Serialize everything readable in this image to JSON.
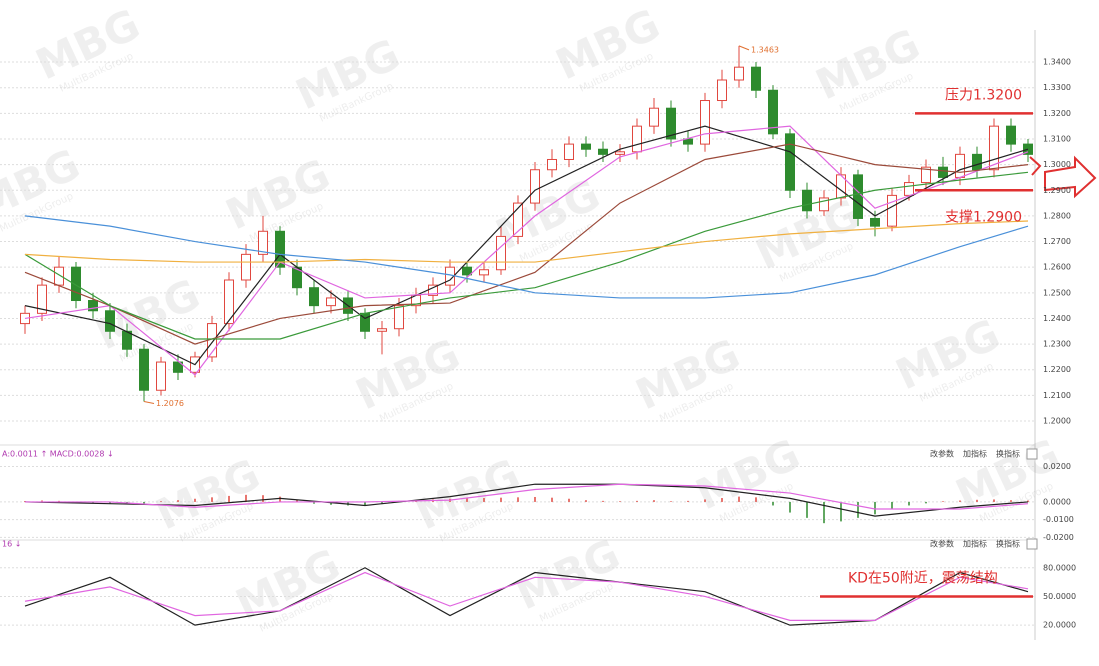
{
  "watermark": "MBG",
  "watermark_sub": "MultiBankGroup",
  "toolbar": [
    "改参数",
    "加指标",
    "换指标"
  ],
  "chart_data": [
    {
      "type": "candlestick",
      "open": [
        1.238,
        1.242,
        1.253,
        1.26,
        1.247,
        1.243,
        1.235,
        1.228,
        1.212,
        1.223,
        1.219,
        1.225,
        1.238,
        1.255,
        1.265,
        1.274,
        1.26,
        1.252,
        1.245,
        1.248,
        1.242,
        1.235,
        1.236,
        1.245,
        1.249,
        1.253,
        1.26,
        1.257,
        1.259,
        1.272,
        1.285,
        1.298,
        1.302,
        1.308,
        1.306,
        1.304,
        1.305,
        1.315,
        1.322,
        1.31,
        1.308,
        1.325,
        1.333,
        1.338,
        1.329,
        1.312,
        1.29,
        1.282,
        1.287,
        1.296,
        1.279,
        1.276,
        1.288,
        1.293,
        1.299,
        1.295,
        1.304,
        1.298,
        1.315,
        1.308
      ],
      "high": [
        1.245,
        1.256,
        1.264,
        1.262,
        1.25,
        1.246,
        1.238,
        1.23,
        1.225,
        1.226,
        1.227,
        1.241,
        1.258,
        1.269,
        1.28,
        1.276,
        1.263,
        1.255,
        1.251,
        1.251,
        1.244,
        1.239,
        1.248,
        1.252,
        1.256,
        1.263,
        1.262,
        1.262,
        1.276,
        1.288,
        1.301,
        1.306,
        1.311,
        1.311,
        1.309,
        1.308,
        1.318,
        1.326,
        1.325,
        1.313,
        1.328,
        1.337,
        1.3463,
        1.34,
        1.331,
        1.314,
        1.293,
        1.29,
        1.299,
        1.298,
        1.282,
        1.291,
        1.296,
        1.302,
        1.303,
        1.307,
        1.307,
        1.318,
        1.318,
        1.31
      ],
      "low": [
        1.234,
        1.239,
        1.25,
        1.244,
        1.24,
        1.232,
        1.225,
        1.2076,
        1.21,
        1.216,
        1.217,
        1.223,
        1.235,
        1.252,
        1.262,
        1.257,
        1.249,
        1.242,
        1.242,
        1.239,
        1.232,
        1.226,
        1.233,
        1.242,
        1.246,
        1.25,
        1.254,
        1.254,
        1.257,
        1.269,
        1.282,
        1.295,
        1.299,
        1.303,
        1.301,
        1.301,
        1.302,
        1.312,
        1.307,
        1.305,
        1.305,
        1.322,
        1.33,
        1.326,
        1.31,
        1.287,
        1.279,
        1.28,
        1.284,
        1.276,
        1.272,
        1.274,
        1.286,
        1.29,
        1.292,
        1.292,
        1.295,
        1.295,
        1.305,
        1.301
      ],
      "close": [
        1.242,
        1.253,
        1.26,
        1.247,
        1.243,
        1.235,
        1.228,
        1.212,
        1.223,
        1.219,
        1.225,
        1.238,
        1.255,
        1.265,
        1.274,
        1.26,
        1.252,
        1.245,
        1.248,
        1.242,
        1.235,
        1.236,
        1.245,
        1.249,
        1.253,
        1.26,
        1.257,
        1.259,
        1.272,
        1.285,
        1.298,
        1.302,
        1.308,
        1.306,
        1.304,
        1.305,
        1.315,
        1.322,
        1.31,
        1.308,
        1.325,
        1.333,
        1.338,
        1.329,
        1.312,
        1.29,
        1.282,
        1.287,
        1.296,
        1.279,
        1.276,
        1.288,
        1.293,
        1.299,
        1.295,
        1.304,
        1.298,
        1.315,
        1.308,
        1.304
      ],
      "up_color": "#e0473f",
      "down_color": "#2e8b2e",
      "series": [
        {
          "color": "#222222",
          "x": [
            0,
            5,
            10,
            15,
            20,
            25,
            30,
            35,
            40,
            45,
            50,
            55,
            59
          ],
          "values": [
            1.245,
            1.238,
            1.222,
            1.265,
            1.24,
            1.255,
            1.29,
            1.306,
            1.315,
            1.305,
            1.28,
            1.298,
            1.306
          ]
        },
        {
          "color": "#e066e0",
          "x": [
            0,
            5,
            10,
            15,
            20,
            25,
            30,
            35,
            40,
            45,
            50,
            55,
            59
          ],
          "values": [
            1.24,
            1.245,
            1.218,
            1.262,
            1.248,
            1.25,
            1.28,
            1.303,
            1.312,
            1.315,
            1.283,
            1.295,
            1.305
          ]
        },
        {
          "color": "#9b4a3a",
          "x": [
            0,
            5,
            10,
            15,
            20,
            25,
            30,
            35,
            40,
            45,
            50,
            55,
            59
          ],
          "values": [
            1.258,
            1.245,
            1.23,
            1.24,
            1.245,
            1.246,
            1.258,
            1.285,
            1.302,
            1.308,
            1.3,
            1.297,
            1.3
          ]
        },
        {
          "color": "#3a9a3a",
          "x": [
            0,
            5,
            10,
            15,
            20,
            25,
            30,
            35,
            40,
            45,
            50,
            55,
            59
          ],
          "values": [
            1.265,
            1.245,
            1.232,
            1.232,
            1.242,
            1.248,
            1.252,
            1.262,
            1.274,
            1.283,
            1.29,
            1.294,
            1.297
          ]
        },
        {
          "color": "#f0b040",
          "x": [
            0,
            5,
            10,
            15,
            20,
            25,
            30,
            35,
            40,
            45,
            50,
            55,
            59
          ],
          "values": [
            1.265,
            1.263,
            1.262,
            1.262,
            1.263,
            1.262,
            1.262,
            1.266,
            1.27,
            1.273,
            1.275,
            1.277,
            1.278
          ]
        },
        {
          "color": "#4a90d9",
          "x": [
            0,
            5,
            10,
            15,
            20,
            25,
            30,
            35,
            40,
            45,
            50,
            55,
            59
          ],
          "values": [
            1.28,
            1.276,
            1.27,
            1.265,
            1.262,
            1.257,
            1.25,
            1.248,
            1.248,
            1.25,
            1.257,
            1.268,
            1.276
          ]
        }
      ],
      "ylim": [
        1.1926,
        1.3525
      ],
      "yticks": [
        {
          "value": 1.2,
          "label": "1.2000"
        },
        {
          "value": 1.21,
          "label": "1.2100"
        },
        {
          "value": 1.22,
          "label": "1.2200"
        },
        {
          "value": 1.23,
          "label": "1.2300"
        },
        {
          "value": 1.24,
          "label": "1.2400"
        },
        {
          "value": 1.25,
          "label": "1.2500"
        },
        {
          "value": 1.26,
          "label": "1.2600"
        },
        {
          "value": 1.27,
          "label": "1.2700"
        },
        {
          "value": 1.28,
          "label": "1.2800"
        },
        {
          "value": 1.29,
          "label": "1.2900"
        },
        {
          "value": 1.3,
          "label": "1.3000"
        },
        {
          "value": 1.31,
          "label": "1.3100"
        },
        {
          "value": 1.32,
          "label": "1.3200"
        },
        {
          "value": 1.33,
          "label": "1.3300"
        },
        {
          "value": 1.34,
          "label": "1.3400"
        }
      ],
      "annotations": [
        {
          "text": "压力1.3200",
          "value": 1.32,
          "color": "#e03030"
        },
        {
          "text": "支撑1.2900",
          "value": 1.29,
          "color": "#e03030"
        }
      ],
      "grid": true
    },
    {
      "type": "macd",
      "header": "A:0.0011 ↑ MACD:0.0028 ↓",
      "hist": [
        0.0005,
        0.0008,
        0.0006,
        -0.0004,
        -0.0006,
        -0.0008,
        -0.001,
        -0.0012,
        0.0004,
        0.001,
        0.0018,
        0.0026,
        0.0034,
        0.004,
        0.0038,
        0.003,
        0.0012,
        -0.001,
        -0.0016,
        -0.002,
        -0.0018,
        -0.0012,
        0.0006,
        0.001,
        0.0014,
        0.0018,
        0.002,
        0.0022,
        0.0024,
        0.0026,
        0.0028,
        0.0024,
        0.0018,
        0.001,
        0.0006,
        0.0004,
        0.0006,
        0.001,
        0.0004,
        0.0006,
        0.0014,
        0.0022,
        0.003,
        0.0026,
        -0.002,
        -0.006,
        -0.009,
        -0.012,
        -0.011,
        -0.009,
        -0.007,
        -0.004,
        -0.002,
        -0.0008,
        0.0004,
        0.0008,
        0.0012,
        0.0014,
        0.001,
        0.0008
      ],
      "up_color": "#e0473f",
      "down_color": "#2e8b2e",
      "series": [
        {
          "color": "#222222",
          "x": [
            0,
            5,
            10,
            15,
            20,
            25,
            30,
            35,
            40,
            45,
            50,
            55,
            59
          ],
          "values": [
            0.0,
            -0.001,
            -0.002,
            0.002,
            -0.002,
            0.003,
            0.01,
            0.01,
            0.008,
            0.002,
            -0.008,
            -0.003,
            0.0
          ]
        },
        {
          "color": "#e066e0",
          "x": [
            0,
            5,
            10,
            15,
            20,
            25,
            30,
            35,
            40,
            45,
            50,
            55,
            59
          ],
          "values": [
            0.0,
            0.0,
            -0.003,
            0.0,
            0.0,
            0.001,
            0.007,
            0.01,
            0.009,
            0.005,
            -0.004,
            -0.004,
            -0.001
          ]
        }
      ],
      "ylim": [
        -0.0215,
        0.0265
      ],
      "yticks": [
        {
          "value": 0.02,
          "label": "0.0200"
        },
        {
          "value": 0,
          "label": "0.0000"
        },
        {
          "value": -0.01,
          "label": "-0.0100"
        },
        {
          "value": -0.02,
          "label": "-0.0200"
        }
      ]
    },
    {
      "type": "line",
      "header": "16 ↓",
      "series": [
        {
          "color": "#222222",
          "x": [
            0,
            5,
            10,
            15,
            20,
            25,
            30,
            35,
            40,
            45,
            50,
            55,
            59
          ],
          "values": [
            40,
            70,
            20,
            35,
            80,
            30,
            75,
            65,
            55,
            20,
            25,
            75,
            55
          ]
        },
        {
          "color": "#e066e0",
          "x": [
            0,
            5,
            10,
            15,
            20,
            25,
            30,
            35,
            40,
            45,
            50,
            55,
            59
          ],
          "values": [
            45,
            60,
            30,
            35,
            75,
            40,
            70,
            65,
            50,
            25,
            25,
            70,
            58
          ]
        }
      ],
      "ylim": [
        9.7,
        103.8
      ],
      "yticks": [
        {
          "value": 80,
          "label": "80.0000"
        },
        {
          "value": 50,
          "label": "50.0000"
        },
        {
          "value": 20,
          "label": "20.0000"
        }
      ],
      "annotations": [
        {
          "text": "KD在50附近，震荡结构",
          "value": 50,
          "color": "#e03030"
        }
      ]
    }
  ]
}
